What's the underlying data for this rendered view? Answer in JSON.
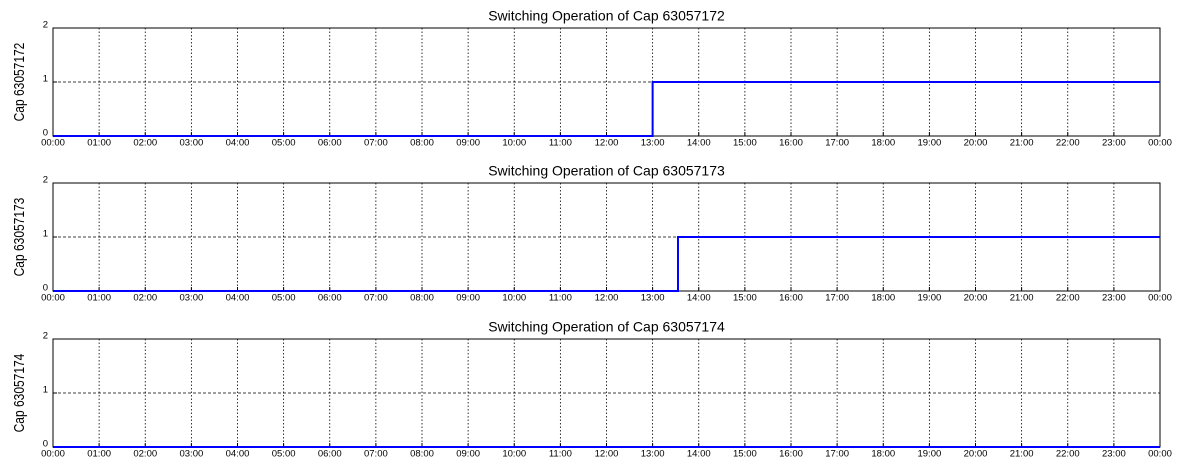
{
  "chart_data": [
    {
      "type": "line",
      "title": "Switching Operation of Cap 63057172",
      "ylabel": "Cap 63057172",
      "x": [
        0,
        13,
        13,
        24
      ],
      "series": [
        {
          "color": "#0000ff",
          "values": [
            0,
            0,
            1,
            1
          ]
        }
      ],
      "xlim": [
        0,
        24
      ],
      "ylim": [
        0,
        2
      ],
      "yticks": [
        0,
        1,
        2
      ],
      "grid": true,
      "xticks": [
        {
          "value": 0,
          "label": "00:00"
        },
        {
          "value": 1,
          "label": "01:00"
        },
        {
          "value": 2,
          "label": "02:00"
        },
        {
          "value": 3,
          "label": "03:00"
        },
        {
          "value": 4,
          "label": "04:00"
        },
        {
          "value": 5,
          "label": "05:00"
        },
        {
          "value": 6,
          "label": "06:00"
        },
        {
          "value": 7,
          "label": "07:00"
        },
        {
          "value": 8,
          "label": "08:00"
        },
        {
          "value": 9,
          "label": "09:00"
        },
        {
          "value": 10,
          "label": "10:00"
        },
        {
          "value": 11,
          "label": "11:00"
        },
        {
          "value": 12,
          "label": "12:00"
        },
        {
          "value": 13,
          "label": "13:00"
        },
        {
          "value": 14,
          "label": "14:00"
        },
        {
          "value": 15,
          "label": "15:00"
        },
        {
          "value": 16,
          "label": "16:00"
        },
        {
          "value": 17,
          "label": "17:00"
        },
        {
          "value": 18,
          "label": "18:00"
        },
        {
          "value": 19,
          "label": "19:00"
        },
        {
          "value": 20,
          "label": "20:00"
        },
        {
          "value": 21,
          "label": "21:00"
        },
        {
          "value": 22,
          "label": "22:00"
        },
        {
          "value": 23,
          "label": "23:00"
        },
        {
          "value": 24,
          "label": "00:00"
        }
      ]
    },
    {
      "type": "line",
      "title": "Switching Operation of Cap 63057173",
      "ylabel": "Cap 63057173",
      "x": [
        0,
        13.55,
        13.55,
        24
      ],
      "series": [
        {
          "color": "#0000ff",
          "values": [
            0,
            0,
            1,
            1
          ]
        }
      ],
      "xlim": [
        0,
        24
      ],
      "ylim": [
        0,
        2
      ],
      "yticks": [
        0,
        1,
        2
      ],
      "grid": true,
      "xticks": [
        {
          "value": 0,
          "label": "00:00"
        },
        {
          "value": 1,
          "label": "01:00"
        },
        {
          "value": 2,
          "label": "02:00"
        },
        {
          "value": 3,
          "label": "03:00"
        },
        {
          "value": 4,
          "label": "04:00"
        },
        {
          "value": 5,
          "label": "05:00"
        },
        {
          "value": 6,
          "label": "06:00"
        },
        {
          "value": 7,
          "label": "07:00"
        },
        {
          "value": 8,
          "label": "08:00"
        },
        {
          "value": 9,
          "label": "09:00"
        },
        {
          "value": 10,
          "label": "10:00"
        },
        {
          "value": 11,
          "label": "11:00"
        },
        {
          "value": 12,
          "label": "12:00"
        },
        {
          "value": 13,
          "label": "13:00"
        },
        {
          "value": 14,
          "label": "14:00"
        },
        {
          "value": 15,
          "label": "15:00"
        },
        {
          "value": 16,
          "label": "16:00"
        },
        {
          "value": 17,
          "label": "17:00"
        },
        {
          "value": 18,
          "label": "18:00"
        },
        {
          "value": 19,
          "label": "19:00"
        },
        {
          "value": 20,
          "label": "20:00"
        },
        {
          "value": 21,
          "label": "21:00"
        },
        {
          "value": 22,
          "label": "22:00"
        },
        {
          "value": 23,
          "label": "23:00"
        },
        {
          "value": 24,
          "label": "00:00"
        }
      ]
    },
    {
      "type": "line",
      "title": "Switching Operation of Cap 63057174",
      "ylabel": "Cap 63057174",
      "x": [
        0,
        24
      ],
      "series": [
        {
          "color": "#0000ff",
          "values": [
            0,
            0
          ]
        }
      ],
      "xlim": [
        0,
        24
      ],
      "ylim": [
        0,
        2
      ],
      "yticks": [
        0,
        1,
        2
      ],
      "grid": true,
      "xticks": [
        {
          "value": 0,
          "label": "00:00"
        },
        {
          "value": 1,
          "label": "01:00"
        },
        {
          "value": 2,
          "label": "02:00"
        },
        {
          "value": 3,
          "label": "03:00"
        },
        {
          "value": 4,
          "label": "04:00"
        },
        {
          "value": 5,
          "label": "05:00"
        },
        {
          "value": 6,
          "label": "06:00"
        },
        {
          "value": 7,
          "label": "07:00"
        },
        {
          "value": 8,
          "label": "08:00"
        },
        {
          "value": 9,
          "label": "09:00"
        },
        {
          "value": 10,
          "label": "10:00"
        },
        {
          "value": 11,
          "label": "11:00"
        },
        {
          "value": 12,
          "label": "12:00"
        },
        {
          "value": 13,
          "label": "13:00"
        },
        {
          "value": 14,
          "label": "14:00"
        },
        {
          "value": 15,
          "label": "15:00"
        },
        {
          "value": 16,
          "label": "16:00"
        },
        {
          "value": 17,
          "label": "17:00"
        },
        {
          "value": 18,
          "label": "18:00"
        },
        {
          "value": 19,
          "label": "19:00"
        },
        {
          "value": 20,
          "label": "20:00"
        },
        {
          "value": 21,
          "label": "21:00"
        },
        {
          "value": 22,
          "label": "22:00"
        },
        {
          "value": 23,
          "label": "23:00"
        },
        {
          "value": 24,
          "label": "00:00"
        }
      ]
    }
  ]
}
